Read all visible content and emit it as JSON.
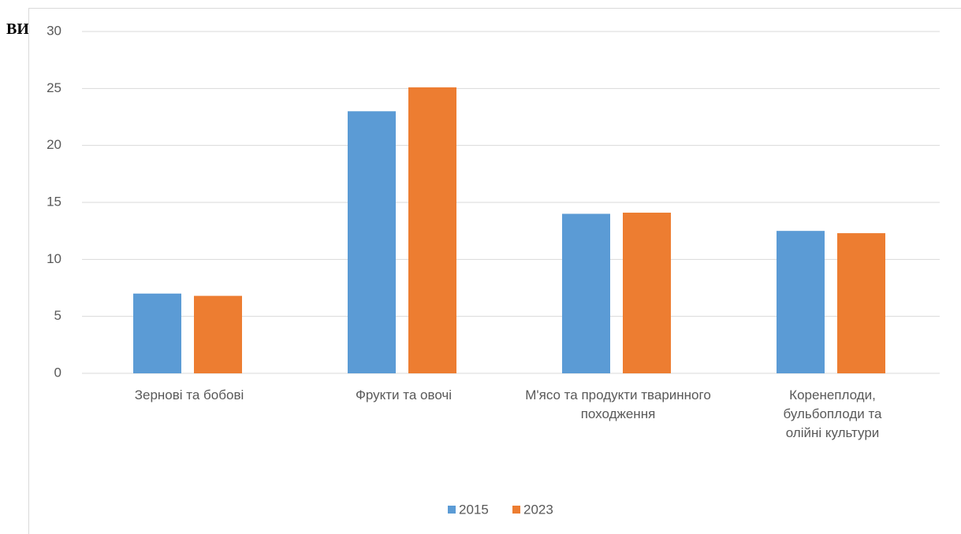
{
  "header_text": "ВИ",
  "chart_data": {
    "type": "bar",
    "categories": [
      "Зернові та бобові",
      "Фрукти та овочі",
      "М'ясо та продукти тваринного походження",
      "Коренеплоди, бульбоплоди та олійні культури"
    ],
    "series": [
      {
        "name": "2015",
        "color": "#5b9bd5",
        "values": [
          7.0,
          23.0,
          14.0,
          12.5
        ]
      },
      {
        "name": "2023",
        "color": "#ed7d31",
        "values": [
          6.8,
          25.1,
          14.1,
          12.3
        ]
      }
    ],
    "ylim": [
      0,
      30
    ],
    "yticks": [
      0,
      5,
      10,
      15,
      20,
      25,
      30
    ],
    "grid": true,
    "legend": "bottom"
  }
}
